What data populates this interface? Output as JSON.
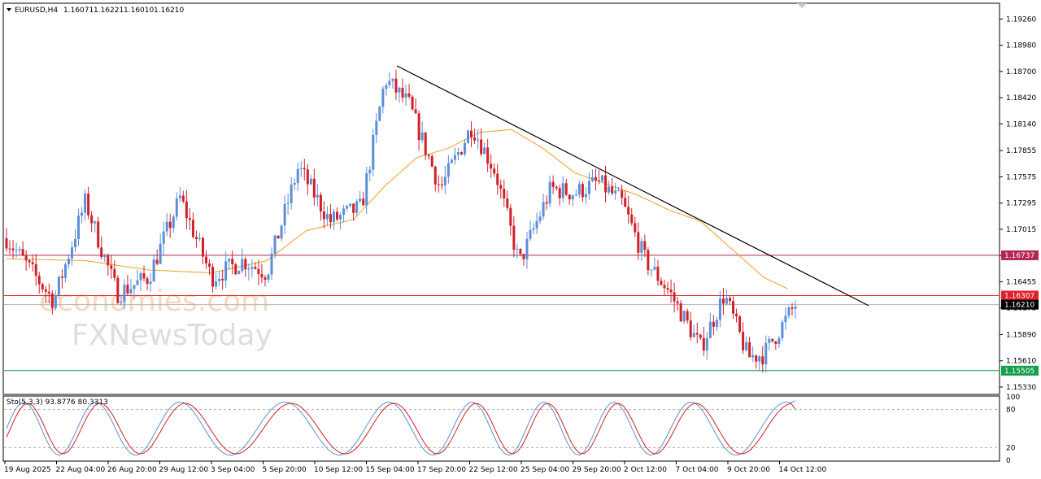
{
  "chart_data": {
    "type": "candlestick",
    "header": {
      "symbol": "EURUSD,H4",
      "open": "1.16071",
      "high": "1.16221",
      "low": "1.16010",
      "close": "1.16210"
    },
    "price_axis": {
      "ylim": [
        1.1526,
        1.1942
      ],
      "ticks": [
        "1.19260",
        "1.18980",
        "1.18700",
        "1.18420",
        "1.18140",
        "1.17855",
        "1.17575",
        "1.17295",
        "1.17015",
        "1.16735",
        "1.16455",
        "1.16175",
        "1.15890",
        "1.15610",
        "1.15330"
      ]
    },
    "time_axis": {
      "labels": [
        "19 Aug 2025",
        "22 Aug 04:00",
        "26 Aug 20:00",
        "29 Aug 12:00",
        "3 Sep 04:00",
        "5 Sep 20:00",
        "10 Sep 12:00",
        "15 Sep 04:00",
        "17 Sep 20:00",
        "22 Sep 12:00",
        "25 Sep 04:00",
        "29 Sep 20:00",
        "2 Oct 12:00",
        "7 Oct 04:00",
        "9 Oct 20:00",
        "14 Oct 12:00"
      ]
    },
    "horizontal_levels": [
      {
        "value": 1.16737,
        "label": "1.16737",
        "color": "#b5264f"
      },
      {
        "value": 1.16307,
        "label": "1.16307",
        "color": "#e0202a"
      },
      {
        "value": 1.15505,
        "label": "1.15505",
        "color": "#12a04a"
      }
    ],
    "current_price": {
      "value": 1.1621,
      "label": "1.16210",
      "color": "#000000"
    },
    "trendline": {
      "from": [
        0.0,
        1.1876
      ],
      "to": [
        1.0,
        1.1622
      ],
      "color": "#000000"
    },
    "price_path": [
      [
        0.0,
        1.1692
      ],
      [
        0.06,
        1.1625
      ],
      [
        0.1,
        1.1731
      ],
      [
        0.14,
        1.1633
      ],
      [
        0.18,
        1.165
      ],
      [
        0.22,
        1.1735
      ],
      [
        0.26,
        1.165
      ],
      [
        0.3,
        1.1668
      ],
      [
        0.33,
        1.1655
      ],
      [
        0.37,
        1.1768
      ],
      [
        0.41,
        1.171
      ],
      [
        0.45,
        1.1725
      ],
      [
        0.48,
        1.1862
      ],
      [
        0.51,
        1.1835
      ],
      [
        0.55,
        1.1745
      ],
      [
        0.59,
        1.1812
      ],
      [
        0.62,
        1.1762
      ],
      [
        0.65,
        1.1665
      ],
      [
        0.69,
        1.1745
      ],
      [
        0.72,
        1.174
      ],
      [
        0.75,
        1.1752
      ],
      [
        0.78,
        1.173
      ],
      [
        0.81,
        1.1668
      ],
      [
        0.84,
        1.1635
      ],
      [
        0.88,
        1.1575
      ],
      [
        0.91,
        1.1632
      ],
      [
        0.94,
        1.1565
      ],
      [
        0.96,
        1.1568
      ],
      [
        1.0,
        1.1621
      ]
    ],
    "moving_average": {
      "color": "#f0a028",
      "points": [
        [
          0.0,
          1.167
        ],
        [
          0.1,
          1.1668
        ],
        [
          0.18,
          1.1658
        ],
        [
          0.26,
          1.1655
        ],
        [
          0.33,
          1.1668
        ],
        [
          0.38,
          1.17
        ],
        [
          0.44,
          1.1712
        ],
        [
          0.48,
          1.1748
        ],
        [
          0.52,
          1.1778
        ],
        [
          0.56,
          1.1788
        ],
        [
          0.6,
          1.1805
        ],
        [
          0.64,
          1.1808
        ],
        [
          0.68,
          1.1788
        ],
        [
          0.72,
          1.1762
        ],
        [
          0.76,
          1.175
        ],
        [
          0.8,
          1.1738
        ],
        [
          0.84,
          1.1722
        ],
        [
          0.88,
          1.171
        ],
        [
          0.92,
          1.168
        ],
        [
          0.96,
          1.165
        ],
        [
          0.99,
          1.1638
        ]
      ]
    },
    "stochastic": {
      "label": "Sto(5,3,3) 93.8776 80.3313",
      "ylim": [
        0,
        100
      ],
      "ticks": [
        "100",
        "80",
        "20",
        "0"
      ],
      "levels": [
        80,
        20
      ],
      "main_color": "#5b8fd8",
      "signal_color": "#d0202a"
    },
    "colors": {
      "bull": "#5b8fd8",
      "bear": "#d0202a",
      "grid": "#000000"
    },
    "watermark": {
      "line1": "economies.com",
      "line2": "FXNewsToday"
    }
  }
}
